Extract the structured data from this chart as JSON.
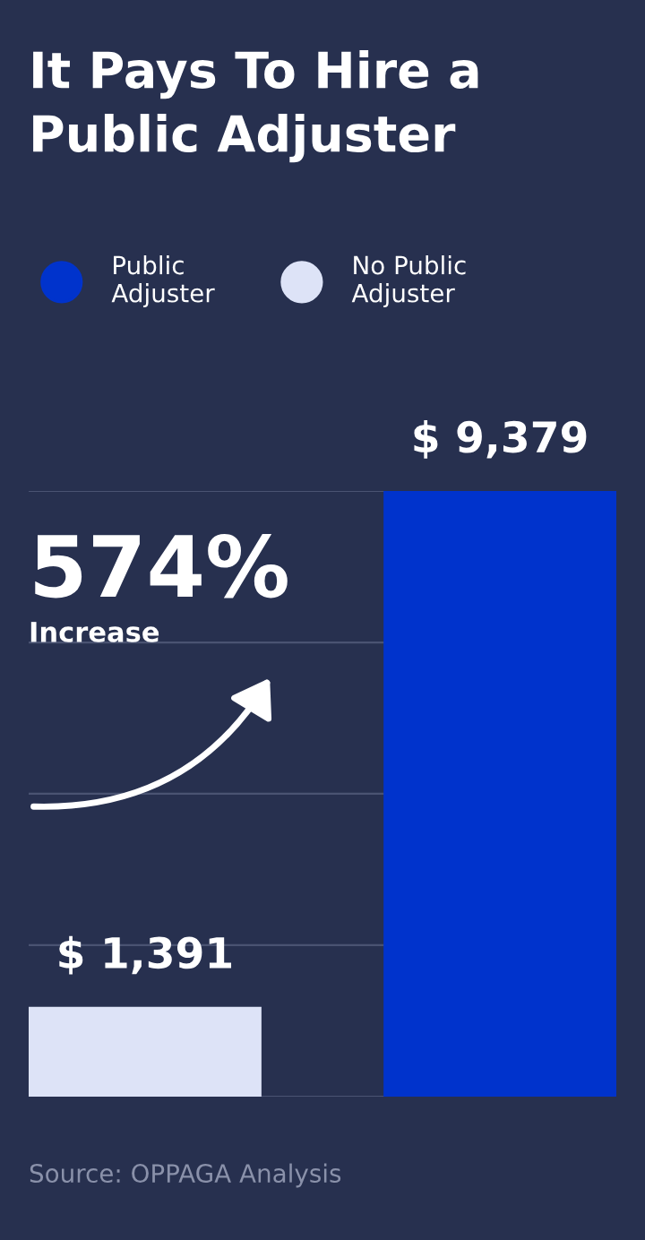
{
  "chart_data": {
    "type": "bar",
    "title": "It Pays To Hire a Public Adjuster",
    "categories": [
      null,
      null
    ],
    "series": [
      {
        "name": "Public Adjuster",
        "color": "#0033cc",
        "values": [
          null,
          9379
        ],
        "value_labels": [
          null,
          "$ 9,379"
        ]
      },
      {
        "name": "No Public Adjuster",
        "color": "#dde3f7",
        "values": [
          1391,
          null
        ],
        "value_labels": [
          "$ 1,391",
          null
        ]
      }
    ],
    "yticks": [
      {
        "value": 0,
        "label": null
      },
      {
        "value": 2345,
        "label": null
      },
      {
        "value": 4690,
        "label": null
      },
      {
        "value": 7034,
        "label": null
      },
      {
        "value": 9379,
        "label": null
      }
    ],
    "grid": "y",
    "legend": "top",
    "stacked": true,
    "annotations": [
      "574%",
      "Increase",
      "Source: OPPAGA Analysis"
    ]
  }
}
